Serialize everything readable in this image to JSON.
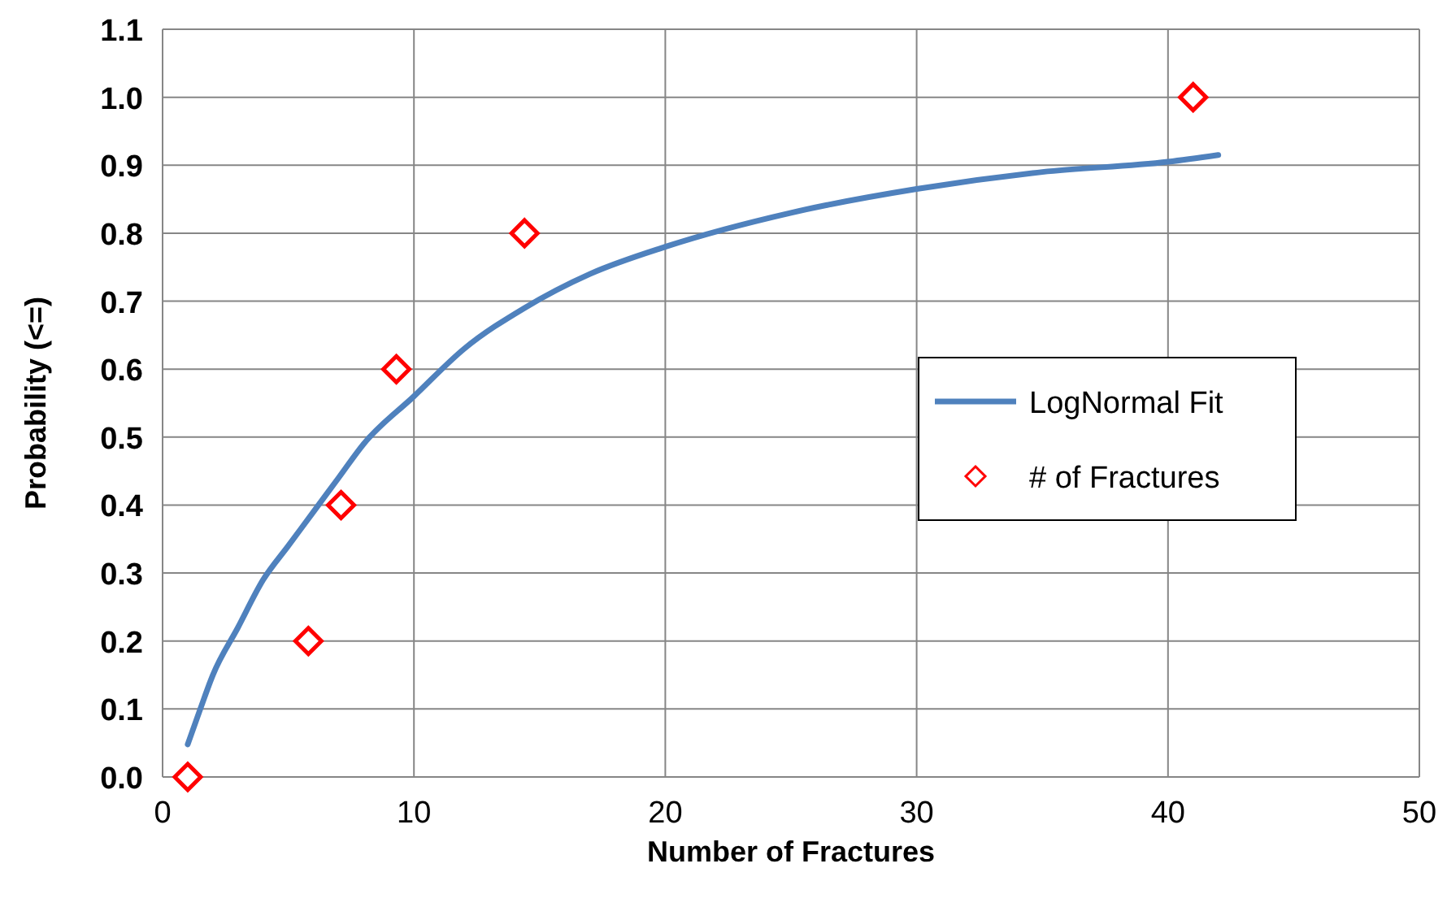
{
  "chart_data": {
    "type": "scatter",
    "xlabel": "Number of Fractures",
    "ylabel": "Probability (<=)",
    "xlim": [
      0,
      50
    ],
    "xticks": [
      0,
      10,
      20,
      30,
      40,
      50
    ],
    "ylim": [
      0,
      1.1
    ],
    "yticks": [
      {
        "value": 0,
        "label": "0.0"
      },
      {
        "value": 0.1,
        "label": "0.1"
      },
      {
        "value": 0.2,
        "label": "0.2"
      },
      {
        "value": 0.3,
        "label": "0.3"
      },
      {
        "value": 0.4,
        "label": "0.4"
      },
      {
        "value": 0.5,
        "label": "0.5"
      },
      {
        "value": 0.6,
        "label": "0.6"
      },
      {
        "value": 0.7,
        "label": "0.7"
      },
      {
        "value": 0.8,
        "label": "0.8"
      },
      {
        "value": 0.9,
        "label": "0.9"
      },
      {
        "value": 1,
        "label": "1.0"
      },
      {
        "value": 1.1,
        "label": "1.1"
      }
    ],
    "grid": true,
    "legend": "right",
    "series": [
      {
        "type": "line",
        "name": "LogNormal Fit",
        "color": "#4f81bd",
        "marker": "none",
        "line_style": "solid",
        "x": [
          1,
          1.5,
          2,
          3,
          4,
          5,
          6,
          7,
          8,
          10,
          12,
          14.4,
          17,
          20,
          25,
          30,
          35,
          40,
          42
        ],
        "values": [
          0.048,
          0.1,
          0.15,
          0.22,
          0.29,
          0.34,
          0.39,
          0.44,
          0.49,
          0.56,
          0.63,
          0.69,
          0.74,
          0.78,
          0.83,
          0.865,
          0.89,
          0.905,
          0.915
        ]
      },
      {
        "name": "# of Fractures",
        "color": "#ff0000",
        "marker": "diamond",
        "x": [
          1,
          5.8,
          7.1,
          9.3,
          14.4,
          41
        ],
        "values": [
          0,
          0.2,
          0.4,
          0.6,
          0.8,
          1
        ]
      }
    ]
  }
}
